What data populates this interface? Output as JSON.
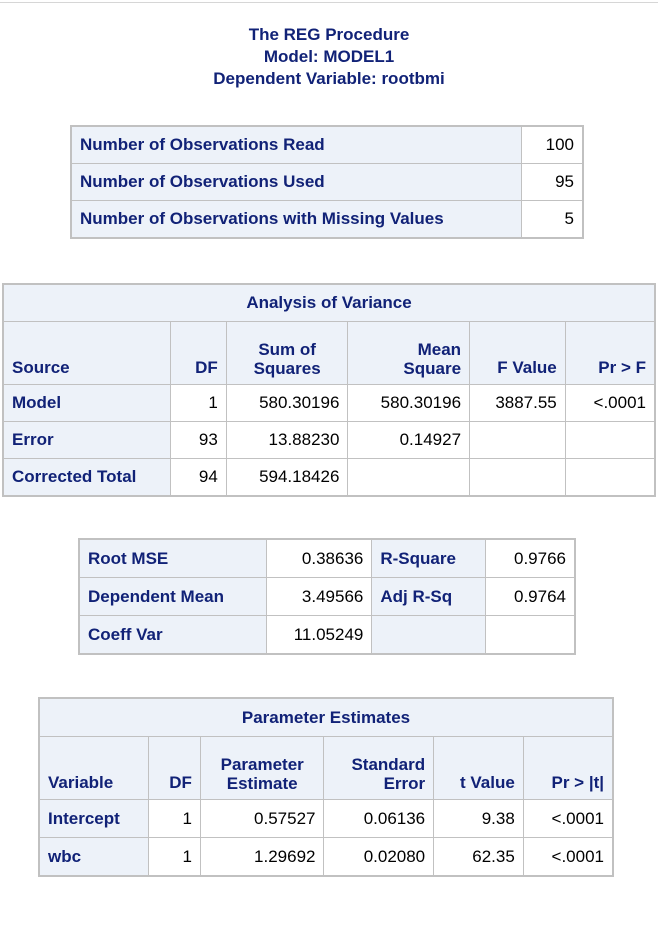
{
  "titles": {
    "procedure": "The REG Procedure",
    "model": "Model: MODEL1",
    "dependent": "Dependent Variable: rootbmi"
  },
  "observations": {
    "rows": [
      {
        "label": "Number of Observations Read",
        "value": "100"
      },
      {
        "label": "Number of Observations Used",
        "value": "95"
      },
      {
        "label": "Number of Observations with Missing Values",
        "value": "5"
      }
    ]
  },
  "anova": {
    "title": "Analysis of Variance",
    "headers": {
      "source": "Source",
      "df": "DF",
      "ss_line1": "Sum of",
      "ss_line2": "Squares",
      "ms_line1": "Mean",
      "ms_line2": "Square",
      "f": "F Value",
      "p": "Pr > F"
    },
    "rows": [
      {
        "source": "Model",
        "df": "1",
        "ss": "580.30196",
        "ms": "580.30196",
        "f": "3887.55",
        "p": "<.0001"
      },
      {
        "source": "Error",
        "df": "93",
        "ss": "13.88230",
        "ms": "0.14927",
        "f": "",
        "p": ""
      },
      {
        "source": "Corrected Total",
        "df": "94",
        "ss": "594.18426",
        "ms": "",
        "f": "",
        "p": ""
      }
    ]
  },
  "fit": {
    "rows": [
      {
        "label1": "Root MSE",
        "value1": "0.38636",
        "label2": "R-Square",
        "value2": "0.9766"
      },
      {
        "label1": "Dependent Mean",
        "value1": "3.49566",
        "label2": "Adj R-Sq",
        "value2": "0.9764"
      },
      {
        "label1": "Coeff Var",
        "value1": "11.05249",
        "label2": "",
        "value2": ""
      }
    ]
  },
  "params": {
    "title": "Parameter Estimates",
    "headers": {
      "variable": "Variable",
      "df": "DF",
      "est_line1": "Parameter",
      "est_line2": "Estimate",
      "se_line1": "Standard",
      "se_line2": "Error",
      "t": "t Value",
      "p": "Pr > |t|"
    },
    "rows": [
      {
        "variable": "Intercept",
        "df": "1",
        "estimate": "0.57527",
        "se": "0.06136",
        "t": "9.38",
        "p": "<.0001"
      },
      {
        "variable": "wbc",
        "df": "1",
        "estimate": "1.29692",
        "se": "0.02080",
        "t": "62.35",
        "p": "<.0001"
      }
    ]
  }
}
